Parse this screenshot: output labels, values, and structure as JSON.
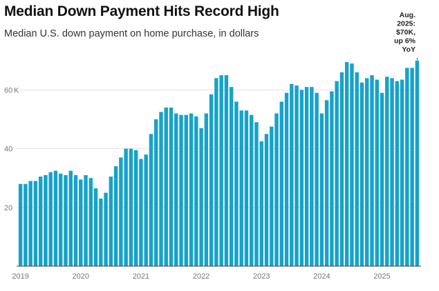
{
  "title": "Median Down Payment Hits Record High",
  "subtitle": "Median U.S. down payment on home purchase, in dollars",
  "colors": {
    "bar": "#17a2c9",
    "grid": "#e2e2e2",
    "axis": "#444444"
  },
  "chart_data": {
    "type": "bar",
    "x_tick_labels": [
      "2019",
      "2020",
      "2021",
      "2022",
      "2023",
      "2024",
      "2025"
    ],
    "y_ticks": [
      {
        "value": 20,
        "label": "20"
      },
      {
        "value": 40,
        "label": "40"
      },
      {
        "value": 60,
        "label": "60"
      }
    ],
    "y_unit_suffix": "K",
    "ylim": [
      0,
      75
    ],
    "grid": true,
    "annotation": {
      "lines": [
        "Aug.",
        "2025:",
        "$70K,",
        "up 6%",
        "YoY"
      ]
    },
    "start": "2019-01",
    "end": "2025-08",
    "values": [
      28,
      28,
      29,
      29,
      30.5,
      31,
      32,
      32.5,
      31.5,
      31,
      32.5,
      31,
      29.5,
      31,
      30,
      26.5,
      23,
      25,
      30.5,
      34,
      37,
      40,
      40,
      39.5,
      36.5,
      38,
      45,
      50,
      52.5,
      54,
      54,
      52,
      51.5,
      51.5,
      52,
      51,
      47,
      52,
      58.5,
      64,
      65,
      65,
      61,
      56,
      53,
      53,
      51.5,
      49,
      42.5,
      45,
      47.5,
      52,
      56,
      59,
      62,
      61.5,
      60,
      61,
      61,
      59,
      52,
      56.5,
      59.5,
      63,
      66,
      69.5,
      69,
      66,
      62.5,
      64,
      65,
      63.5,
      59,
      64.5,
      64,
      63,
      63.5,
      67.5,
      67.5,
      70
    ]
  }
}
